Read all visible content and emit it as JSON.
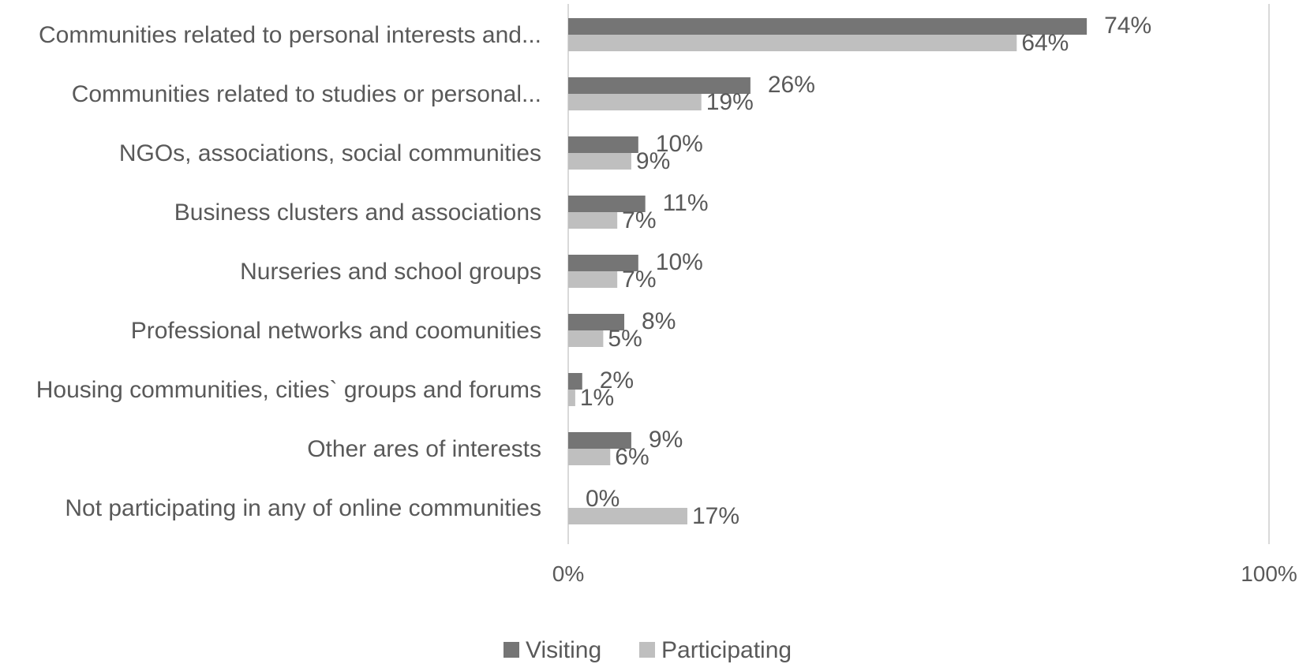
{
  "chart_data": {
    "type": "bar",
    "orientation": "horizontal",
    "categories": [
      "Communities related to personal interests and...",
      "Communities related to studies or personal...",
      "NGOs, associations, social communities",
      "Business clusters and associations",
      "Nurseries and school groups",
      "Professional networks and coomunities",
      "Housing communities, cities` groups and forums",
      "Other ares of interests",
      "Not participating in any of online communities"
    ],
    "series": [
      {
        "name": "Visiting",
        "color": "#757575",
        "values": [
          74,
          26,
          10,
          11,
          10,
          8,
          2,
          9,
          0
        ],
        "labels": [
          "74%",
          "26%",
          "10%",
          "11%",
          "10%",
          "8%",
          "2%",
          "9%",
          "0%"
        ]
      },
      {
        "name": "Participating",
        "color": "#bfbfbf",
        "values": [
          64,
          19,
          9,
          7,
          7,
          5,
          1,
          6,
          17
        ],
        "labels": [
          "64%",
          "19%",
          "9%",
          "7%",
          "7%",
          "5%",
          "1%",
          "6%",
          "17%"
        ]
      }
    ],
    "xlim": [
      0,
      100
    ],
    "x_ticks": [
      0,
      100
    ],
    "x_tick_labels": [
      "0%",
      "100%"
    ],
    "gridlines": true,
    "legend_position": "bottom",
    "axis_color": "#d9d9d9"
  }
}
